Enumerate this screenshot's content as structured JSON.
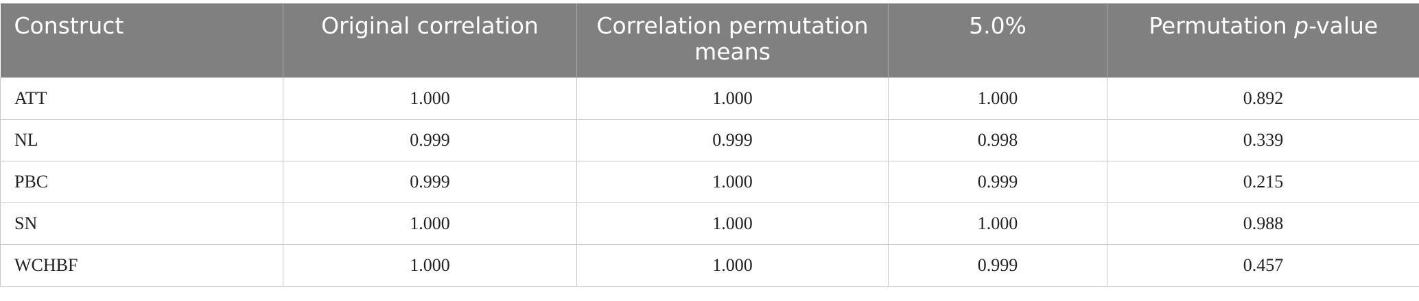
{
  "table": {
    "header": [
      "Construct",
      "Original correlation",
      "Correlation permutation means",
      "5.0%",
      [
        "Permutation ",
        "p",
        "-value"
      ]
    ],
    "rows": [
      [
        "ATT",
        "1.000",
        "1.000",
        "1.000",
        "0.892"
      ],
      [
        "NL",
        "0.999",
        "0.999",
        "0.998",
        "0.339"
      ],
      [
        "PBC",
        "0.999",
        "1.000",
        "0.999",
        "0.215"
      ],
      [
        "SN",
        "1.000",
        "1.000",
        "1.000",
        "0.988"
      ],
      [
        "WCHBF",
        "1.000",
        "1.000",
        "0.999",
        "0.457"
      ]
    ]
  }
}
